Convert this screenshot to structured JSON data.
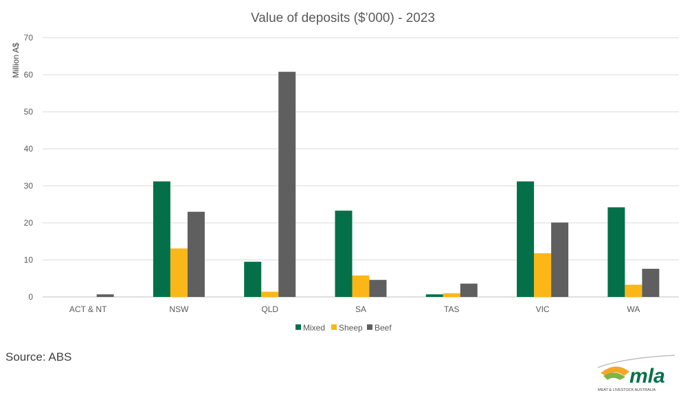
{
  "source": "Source: ABS",
  "logo": {
    "wordmark": "mla",
    "tagline": "MEAT & LIVESTOCK AUSTRALIA"
  },
  "colors": {
    "Mixed": "#04704a",
    "Sheep": "#fbb718",
    "Beef": "#5f5f5f",
    "grid": "#d9d9d9",
    "axis": "#bfbfbf"
  },
  "chart_data": {
    "type": "bar",
    "title": "Value of deposits ($’000) - 2023",
    "xlabel": "",
    "ylabel": "Million A$",
    "ylim": [
      0,
      70
    ],
    "yticks": [
      0,
      10,
      20,
      30,
      40,
      50,
      60,
      70
    ],
    "grid": true,
    "legend_position": "bottom",
    "categories": [
      "ACT & NT",
      "NSW",
      "QLD",
      "SA",
      "TAS",
      "VIC",
      "WA"
    ],
    "series": [
      {
        "name": "Mixed",
        "values": [
          0,
          31.2,
          9.5,
          23.3,
          0.7,
          31.2,
          24.2
        ]
      },
      {
        "name": "Sheep",
        "values": [
          0,
          13.1,
          1.4,
          5.8,
          1.0,
          11.8,
          3.3
        ]
      },
      {
        "name": "Beef",
        "values": [
          0.7,
          23.0,
          60.8,
          4.6,
          3.6,
          20.1,
          7.6
        ]
      }
    ]
  }
}
